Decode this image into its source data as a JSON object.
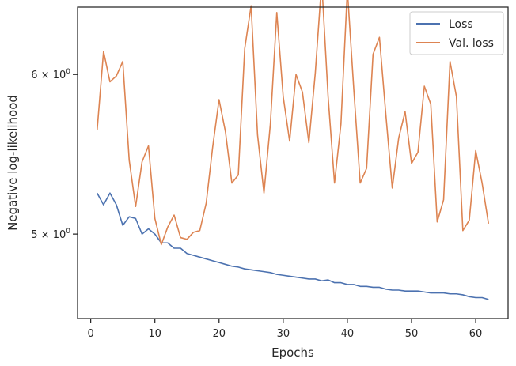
{
  "chart_data": {
    "type": "line",
    "xlabel": "Epochs",
    "ylabel": "Negative log-likelihood",
    "yscale": "log",
    "xlim": [
      -2.05,
      65.05
    ],
    "ylim": [
      4.54,
      6.48
    ],
    "grid": false,
    "legend_position": "top-right",
    "x_ticks": [
      0,
      10,
      20,
      30,
      40,
      50,
      60
    ],
    "x_tick_labels": [
      "0",
      "10",
      "20",
      "30",
      "40",
      "50",
      "60"
    ],
    "y_ticks": [
      5,
      6
    ],
    "y_tick_labels": [
      {
        "base": "5",
        "times": "×",
        "ten": "10",
        "exp": "0"
      },
      {
        "base": "6",
        "times": "×",
        "ten": "10",
        "exp": "0"
      }
    ],
    "series": [
      {
        "name": "Loss",
        "color": "#4c72b0",
        "x": [
          1,
          2,
          3,
          4,
          5,
          6,
          7,
          8,
          9,
          10,
          11,
          12,
          13,
          14,
          15,
          16,
          17,
          18,
          19,
          20,
          21,
          22,
          23,
          24,
          25,
          26,
          27,
          28,
          29,
          30,
          31,
          32,
          33,
          34,
          35,
          36,
          37,
          38,
          39,
          40,
          41,
          42,
          43,
          44,
          45,
          46,
          47,
          48,
          49,
          50,
          51,
          52,
          53,
          54,
          55,
          56,
          57,
          58,
          59,
          60,
          61,
          62
        ],
        "values": [
          5.24,
          5.17,
          5.24,
          5.17,
          5.05,
          5.1,
          5.09,
          5.0,
          5.03,
          5.0,
          4.95,
          4.95,
          4.92,
          4.92,
          4.89,
          4.88,
          4.87,
          4.86,
          4.85,
          4.84,
          4.83,
          4.82,
          4.815,
          4.805,
          4.8,
          4.795,
          4.79,
          4.785,
          4.775,
          4.77,
          4.765,
          4.76,
          4.755,
          4.75,
          4.75,
          4.74,
          4.745,
          4.73,
          4.73,
          4.72,
          4.72,
          4.71,
          4.71,
          4.705,
          4.705,
          4.695,
          4.69,
          4.69,
          4.685,
          4.685,
          4.685,
          4.68,
          4.675,
          4.675,
          4.675,
          4.67,
          4.67,
          4.665,
          4.655,
          4.65,
          4.65,
          4.64
        ]
      },
      {
        "name": "Val. loss",
        "color": "#dd8452",
        "x": [
          1,
          2,
          3,
          4,
          5,
          6,
          7,
          8,
          9,
          10,
          11,
          12,
          13,
          14,
          15,
          16,
          17,
          18,
          19,
          20,
          21,
          22,
          23,
          24,
          25,
          26,
          27,
          28,
          29,
          30,
          31,
          32,
          33,
          34,
          35,
          36,
          37,
          38,
          39,
          40,
          41,
          42,
          43,
          44,
          45,
          46,
          47,
          48,
          49,
          50,
          51,
          52,
          53,
          54,
          55,
          56,
          57,
          58,
          59,
          60,
          61,
          62
        ],
        "values": [
          5.63,
          6.16,
          5.95,
          5.99,
          6.09,
          5.44,
          5.16,
          5.43,
          5.53,
          5.09,
          4.94,
          5.04,
          5.11,
          4.98,
          4.97,
          5.01,
          5.02,
          5.18,
          5.52,
          5.83,
          5.62,
          5.3,
          5.35,
          6.18,
          6.49,
          5.6,
          5.24,
          5.67,
          6.44,
          5.85,
          5.56,
          6.0,
          5.88,
          5.55,
          6.01,
          6.67,
          5.85,
          5.3,
          5.67,
          6.61,
          5.9,
          5.3,
          5.39,
          6.14,
          6.26,
          5.73,
          5.27,
          5.58,
          5.75,
          5.42,
          5.49,
          5.92,
          5.8,
          5.07,
          5.2,
          6.09,
          5.85,
          5.02,
          5.08,
          5.5,
          5.3,
          5.06
        ]
      }
    ]
  }
}
